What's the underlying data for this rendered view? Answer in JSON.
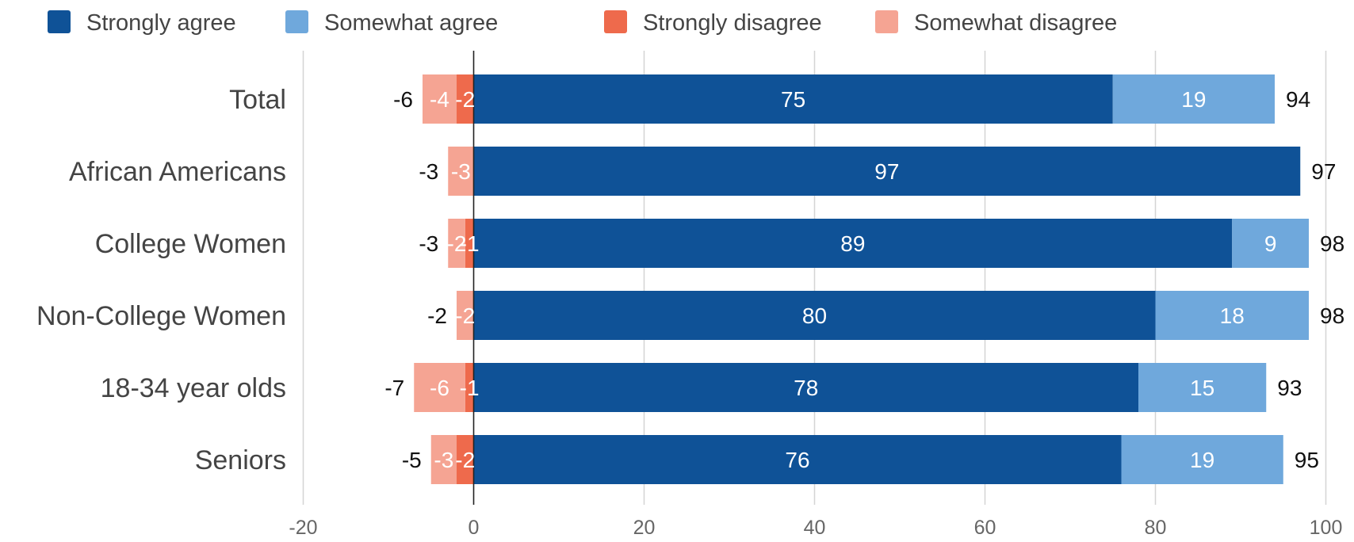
{
  "chart_data": {
    "type": "bar",
    "orientation": "horizontal",
    "stacked": true,
    "categories": [
      "Total",
      "African Americans",
      "College Women",
      "Non-College Women",
      "18-34 year olds",
      "Seniors"
    ],
    "series": [
      {
        "name": "Strongly agree",
        "color": "#0f5297",
        "values": [
          75,
          97,
          89,
          80,
          78,
          76
        ]
      },
      {
        "name": "Somewhat agree",
        "color": "#6fa8dc",
        "values": [
          19,
          null,
          9,
          18,
          15,
          19
        ]
      },
      {
        "name": "Strongly disagree",
        "color": "#ee6a4c",
        "values": [
          -2,
          null,
          -1,
          null,
          -1,
          -2
        ]
      },
      {
        "name": "Somewhat disagree",
        "color": "#f5a493",
        "values": [
          -4,
          -3,
          -2,
          -2,
          -6,
          -3
        ]
      }
    ],
    "agree_totals": [
      "94",
      "97",
      "98",
      "98",
      "93",
      "95"
    ],
    "disagree_totals": [
      "-6",
      "-3",
      "-3",
      "-2",
      "-7",
      "-5"
    ],
    "xlim": [
      -20,
      100
    ],
    "xticks": [
      -20,
      0,
      20,
      40,
      60,
      80,
      100
    ],
    "grid": true,
    "legend_position": "top",
    "xlabel": "",
    "ylabel": ""
  }
}
